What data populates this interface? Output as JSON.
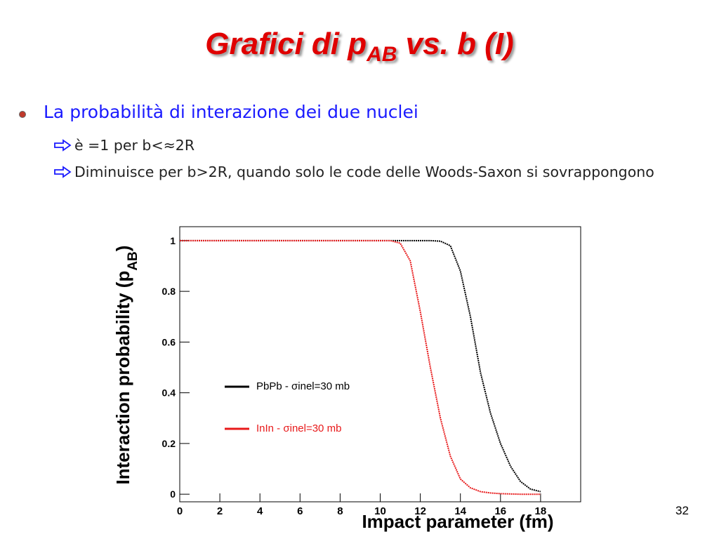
{
  "slide": {
    "title": [
      "Grafici di p",
      "AB",
      " vs. b (I)"
    ],
    "bullets": [
      "La probabilità di interazione dei due nuclei"
    ],
    "sub_bullets": [
      "è =1 per b<≈2R",
      "Diminuisce per b>2R, quando solo le code delle Woods-Saxon si sovrappongono"
    ],
    "page_number": "32"
  },
  "chart_data": {
    "type": "line",
    "x_label": "Impact parameter (fm)",
    "y_label": [
      "Interaction probability (p",
      "AB",
      ")"
    ],
    "x": [
      0,
      0.5,
      1,
      1.5,
      2,
      2.5,
      3,
      3.5,
      4,
      4.5,
      5,
      5.5,
      6,
      6.5,
      7,
      7.5,
      8,
      8.5,
      9,
      9.5,
      10,
      10.5,
      11,
      11.5,
      12,
      12.5,
      13,
      13.5,
      14,
      14.5,
      15,
      15.5,
      16,
      16.5,
      17,
      17.5,
      18
    ],
    "series": [
      {
        "name": "PbPb - σinel=30 mb",
        "color": "#000000",
        "values": [
          1,
          1,
          1,
          1,
          1,
          1,
          1,
          1,
          1,
          1,
          1,
          1,
          1,
          1,
          1,
          1,
          1,
          1,
          1,
          1,
          1,
          1,
          1,
          1,
          1,
          1,
          0.998,
          0.98,
          0.88,
          0.7,
          0.48,
          0.32,
          0.2,
          0.11,
          0.05,
          0.02,
          0.01
        ]
      },
      {
        "name": "InIn - σinel=30 mb",
        "color": "#e8191a",
        "values": [
          1,
          1,
          1,
          1,
          1,
          1,
          1,
          1,
          1,
          1,
          1,
          1,
          1,
          1,
          1,
          1,
          1,
          1,
          1,
          1,
          1,
          1,
          0.99,
          0.92,
          0.72,
          0.5,
          0.3,
          0.15,
          0.06,
          0.025,
          0.01,
          0.005,
          0.002,
          0.001,
          0,
          0,
          0
        ]
      }
    ],
    "xlim": [
      0,
      20
    ],
    "ylim": [
      -0.03,
      1.055
    ],
    "xticks": [
      0,
      2,
      4,
      6,
      8,
      10,
      12,
      14,
      16,
      18
    ],
    "yticks": [
      0,
      0.2,
      0.4,
      0.6,
      0.8,
      1
    ]
  }
}
